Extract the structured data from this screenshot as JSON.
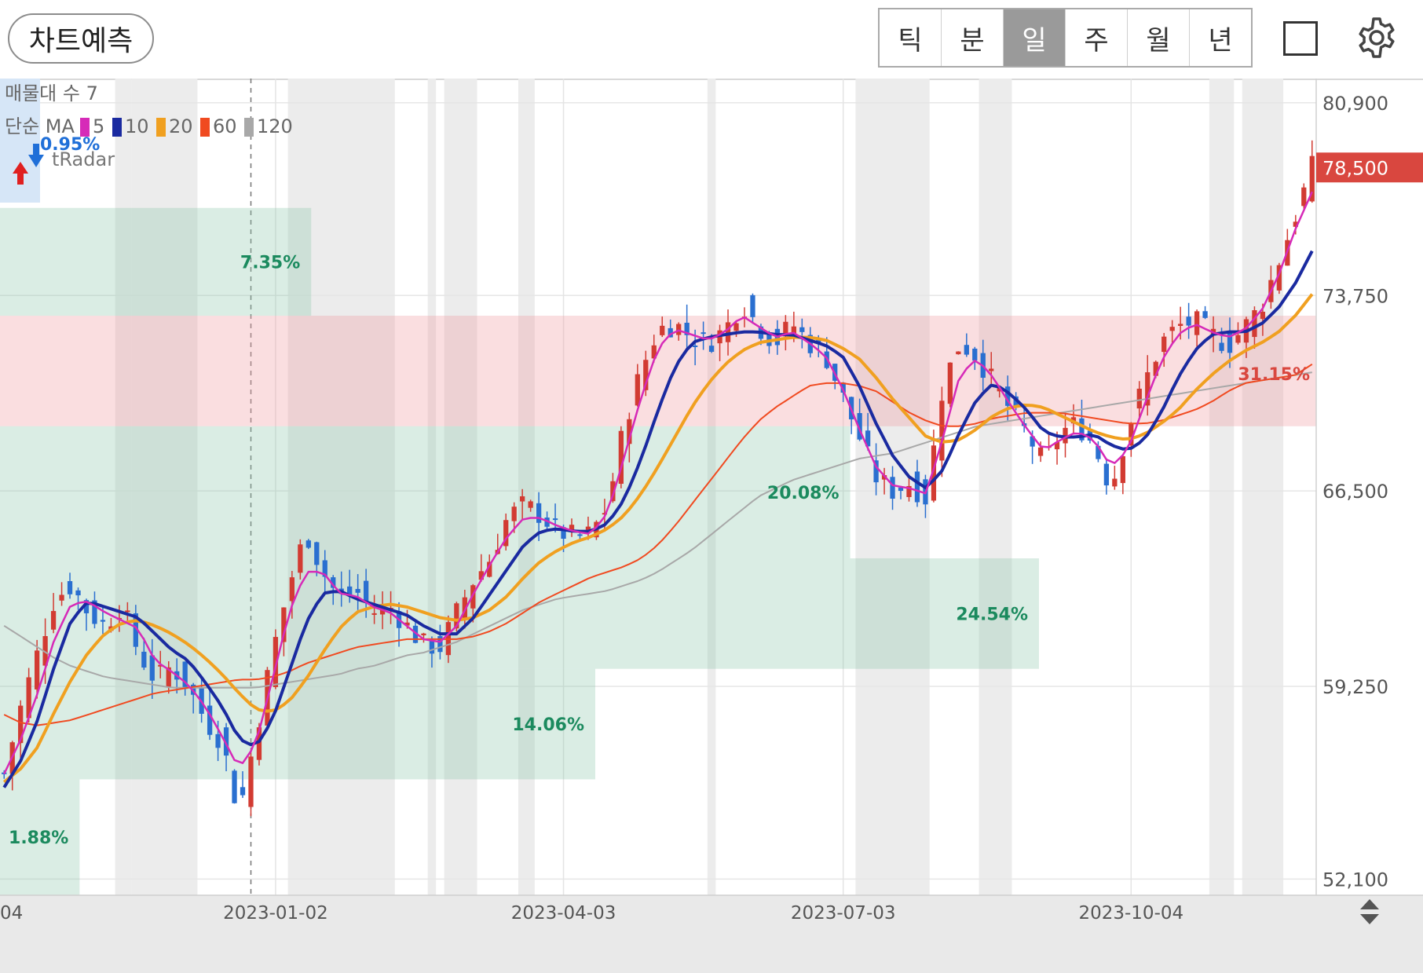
{
  "toolbar": {
    "predict_label": "차트예측",
    "periods": [
      "틱",
      "분",
      "일",
      "주",
      "월",
      "년"
    ],
    "active_period": "일"
  },
  "indicators": {
    "volume_profile_label": "매물대 수 7",
    "ma_prefix": "단순 MA",
    "ma_items": [
      {
        "period": "5",
        "color": "#d62ab8"
      },
      {
        "period": "10",
        "color": "#1a2aa0"
      },
      {
        "period": "20",
        "color": "#f0a020"
      },
      {
        "period": "60",
        "color": "#f04a20"
      },
      {
        "period": "120",
        "color": "#a8a8a8"
      }
    ],
    "radar_pct": "0.95%",
    "radar_label": "tRadar"
  },
  "chart_data": {
    "type": "candlestick",
    "title": "",
    "xlabel": "",
    "ylabel": "",
    "ylim": [
      51500,
      81800
    ],
    "y_ticks": [
      80900,
      73750,
      66500,
      59250,
      52100
    ],
    "y_tick_labels": [
      "80,900",
      "73,750",
      "66,500",
      "59,250",
      "52,100"
    ],
    "x_tick_labels": [
      "04",
      "2023-01-02",
      "2023-04-03",
      "2023-07-03",
      "2023-10-04"
    ],
    "current_price": 78500,
    "current_price_label": "78,500",
    "current_price_color": "#d9473f",
    "resistance_zone": [
      68900,
      73000
    ],
    "resistance_label": "31.15%",
    "volume_profile_bands": [
      {
        "low": 51500,
        "high": 55800,
        "label": "1.88%"
      },
      {
        "low": 55800,
        "high": 59900,
        "label": "14.06%"
      },
      {
        "low": 59900,
        "high": 64000,
        "label": "24.54%"
      },
      {
        "low": 64000,
        "high": 68900,
        "label": "20.08%"
      },
      {
        "low": 73000,
        "high": 77000,
        "label": "7.35%"
      }
    ],
    "prices": [
      56000,
      58500,
      60500,
      62500,
      63000,
      62000,
      61500,
      62300,
      60500,
      59500,
      60000,
      59200,
      58000,
      57200,
      54500,
      57500,
      60500,
      63000,
      65000,
      63500,
      62500,
      62800,
      62000,
      62200,
      61500,
      60800,
      60700,
      62000,
      63200,
      64000,
      65500,
      66000,
      65600,
      65000,
      64800,
      64900,
      66000,
      69000,
      71000,
      72500,
      72700,
      72200,
      72000,
      72500,
      73500,
      72600,
      72000,
      72700,
      72000,
      71500,
      70000,
      68500,
      67000,
      66500,
      66800,
      66200,
      70500,
      72000,
      71500,
      70500,
      69500,
      68600,
      67500,
      68700,
      69000,
      68200,
      66600,
      68800,
      70500,
      72000,
      72600,
      72800,
      72300,
      71900,
      72600,
      73400,
      75000,
      76700,
      78500
    ],
    "ma5": [
      56000,
      57300,
      59000,
      61000,
      62300,
      62400,
      62000,
      61700,
      61400,
      60200,
      59800,
      59300,
      58500,
      57400,
      56200,
      57100,
      59500,
      62000,
      63500,
      63500,
      62700,
      62600,
      62200,
      62000,
      61500,
      61000,
      60900,
      61500,
      62700,
      63800,
      64800,
      65500,
      65500,
      65200,
      65000,
      64900,
      65700,
      67800,
      70000,
      71800,
      72500,
      72300,
      72100,
      72400,
      73000,
      72600,
      72200,
      72400,
      72000,
      71500,
      70300,
      68800,
      67400,
      66700,
      66600,
      66400,
      68500,
      70800,
      71400,
      70700,
      69700,
      68800,
      68000,
      68400,
      68700,
      68400,
      67400,
      68000,
      69700,
      71300,
      72300,
      72700,
      72400,
      72200,
      72500,
      73200,
      74500,
      76200,
      77600
    ],
    "ma10": [
      55500,
      56500,
      58000,
      60000,
      61700,
      62400,
      62200,
      62000,
      61800,
      61200,
      60600,
      60200,
      59400,
      58500,
      57300,
      57000,
      58000,
      59800,
      61600,
      62700,
      62800,
      62500,
      62300,
      62100,
      61900,
      61500,
      61200,
      61200,
      61800,
      62700,
      63600,
      64500,
      65000,
      65100,
      65000,
      65000,
      65300,
      66200,
      67700,
      69500,
      71100,
      72000,
      72200,
      72300,
      72400,
      72400,
      72300,
      72300,
      72100,
      71900,
      71500,
      70400,
      69000,
      67800,
      67000,
      66600,
      67300,
      68700,
      69900,
      70500,
      70100,
      69500,
      68700,
      68500,
      68500,
      68600,
      68200,
      68000,
      68400,
      69400,
      70700,
      71700,
      72300,
      72400,
      72400,
      72700,
      73300,
      74200,
      75400
    ],
    "ma20": [
      55700,
      56200,
      57000,
      58300,
      59500,
      60500,
      61200,
      61600,
      61700,
      61500,
      61200,
      60800,
      60300,
      59700,
      59000,
      58400,
      58300,
      58700,
      59500,
      60500,
      61400,
      62000,
      62200,
      62300,
      62200,
      62000,
      61800,
      61700,
      61800,
      62100,
      62600,
      63300,
      63900,
      64300,
      64600,
      64800,
      65100,
      65600,
      66400,
      67400,
      68500,
      69600,
      70500,
      71200,
      71700,
      72000,
      72100,
      72200,
      72200,
      72100,
      71800,
      71400,
      70700,
      69900,
      69200,
      68500,
      68300,
      68400,
      68800,
      69300,
      69600,
      69700,
      69600,
      69300,
      69000,
      68700,
      68500,
      68400,
      68600,
      69000,
      69500,
      70200,
      70800,
      71300,
      71700,
      72000,
      72400,
      73000,
      73800
    ],
    "ma60": [
      58200,
      57900,
      57800,
      57900,
      58000,
      58200,
      58400,
      58600,
      58800,
      59000,
      59100,
      59200,
      59300,
      59400,
      59500,
      59500,
      59600,
      59800,
      60100,
      60300,
      60500,
      60700,
      60800,
      60900,
      61000,
      61000,
      61000,
      61000,
      61100,
      61300,
      61600,
      62000,
      62400,
      62700,
      63000,
      63300,
      63500,
      63700,
      64000,
      64500,
      65200,
      66000,
      66800,
      67600,
      68400,
      69100,
      69600,
      70000,
      70400,
      70500,
      70500,
      70400,
      70200,
      69800,
      69400,
      69100,
      68900,
      68900,
      69000,
      69200,
      69300,
      69400,
      69400,
      69400,
      69300,
      69200,
      69100,
      69000,
      69000,
      69100,
      69300,
      69500,
      69800,
      70200,
      70500,
      70600,
      70700,
      70800,
      71200
    ],
    "ma120": [
      61500,
      61100,
      60700,
      60300,
      60000,
      59800,
      59600,
      59500,
      59400,
      59300,
      59200,
      59200,
      59200,
      59200,
      59200,
      59200,
      59300,
      59400,
      59500,
      59600,
      59700,
      59900,
      60000,
      60200,
      60400,
      60500,
      60700,
      60900,
      61200,
      61500,
      61800,
      62100,
      62300,
      62500,
      62600,
      62700,
      62800,
      63000,
      63200,
      63500,
      63900,
      64300,
      64800,
      65300,
      65800,
      66300,
      66600,
      66900,
      67100,
      67300,
      67500,
      67700,
      67800,
      67900,
      68100,
      68300,
      68500,
      68700,
      68900,
      69000,
      69100,
      69200,
      69300,
      69400,
      69500,
      69600,
      69700,
      69800,
      69900,
      70000,
      70100,
      70200,
      70300,
      70400,
      70500,
      70600,
      70700,
      70800,
      70900
    ],
    "shaded_index_ranges": [
      [
        14,
        15
      ],
      [
        16,
        23
      ],
      [
        35,
        47
      ],
      [
        52,
        52
      ],
      [
        54,
        57
      ],
      [
        63,
        64
      ],
      [
        86,
        86
      ],
      [
        104,
        112
      ],
      [
        119,
        122
      ],
      [
        147,
        149
      ],
      [
        151,
        155
      ]
    ],
    "candle_count": 160
  }
}
